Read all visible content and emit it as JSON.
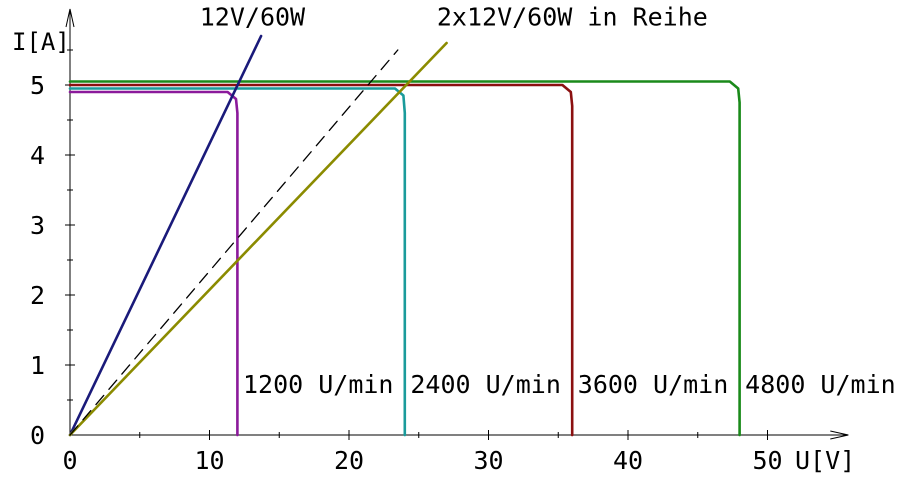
{
  "chart_data": {
    "type": "line",
    "ylabel": "I[A]",
    "xlabel": "U[V]",
    "xlim": [
      0,
      54
    ],
    "ylim": [
      0,
      5.8
    ],
    "x_ticks": [
      0,
      10,
      20,
      30,
      40,
      50
    ],
    "y_ticks": [
      0,
      1,
      2,
      3,
      4,
      5
    ],
    "x_tick_labels": [
      "0",
      "10",
      "20",
      "30",
      "40",
      "50"
    ],
    "y_tick_labels": [
      "0",
      "1",
      "2",
      "3",
      "4",
      "5"
    ],
    "grid": false,
    "series": [
      {
        "name": "1200 U/min",
        "color": "#8b1a9b",
        "points": [
          [
            0,
            4.9
          ],
          [
            11.3,
            4.9
          ],
          [
            11.9,
            4.8
          ],
          [
            12,
            4.6
          ],
          [
            12,
            0
          ]
        ]
      },
      {
        "name": "2400 U/min",
        "color": "#1a9b9b",
        "points": [
          [
            0,
            4.95
          ],
          [
            23.3,
            4.95
          ],
          [
            23.9,
            4.85
          ],
          [
            24,
            4.6
          ],
          [
            24,
            0
          ]
        ]
      },
      {
        "name": "3600 U/min",
        "color": "#8b1010",
        "points": [
          [
            0,
            5.0
          ],
          [
            35.3,
            5.0
          ],
          [
            35.9,
            4.9
          ],
          [
            36,
            4.7
          ],
          [
            36,
            0
          ]
        ]
      },
      {
        "name": "4800 U/min",
        "color": "#1a8a1a",
        "points": [
          [
            0,
            5.05
          ],
          [
            47.3,
            5.05
          ],
          [
            47.9,
            4.95
          ],
          [
            48,
            4.75
          ],
          [
            48,
            0
          ]
        ]
      },
      {
        "name": "12V/60W",
        "color": "#1a1a7a",
        "points": [
          [
            0,
            0
          ],
          [
            13.7,
            5.7
          ]
        ]
      },
      {
        "name": "2x12V/60W in Reihe",
        "color": "#8b8b00",
        "points": [
          [
            0,
            0
          ],
          [
            27,
            5.6
          ]
        ]
      },
      {
        "name": "",
        "color": "#000000",
        "dashed": true,
        "points": [
          [
            0,
            0
          ],
          [
            23.5,
            5.5
          ]
        ]
      }
    ],
    "annotations": [
      {
        "text": "1200 U/min",
        "x": 12.4,
        "y": 0.6
      },
      {
        "text": "2400 U/min",
        "x": 24.4,
        "y": 0.6
      },
      {
        "text": "3600 U/min",
        "x": 36.4,
        "y": 0.6
      },
      {
        "text": "4800 U/min",
        "x": 48.4,
        "y": 0.6
      },
      {
        "text": "12V/60W",
        "x": 9.3,
        "y": 5.85
      },
      {
        "text": "2x12V/60W in Reihe",
        "x": 26.3,
        "y": 5.85
      }
    ]
  }
}
